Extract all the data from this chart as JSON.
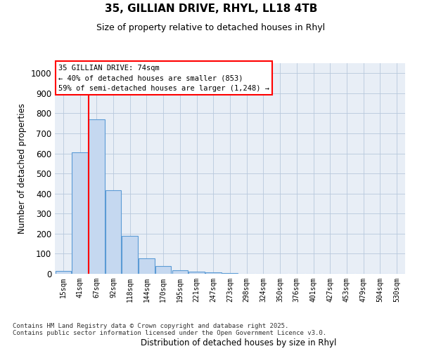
{
  "title1": "35, GILLIAN DRIVE, RHYL, LL18 4TB",
  "title2": "Size of property relative to detached houses in Rhyl",
  "xlabel": "Distribution of detached houses by size in Rhyl",
  "ylabel": "Number of detached properties",
  "bin_labels": [
    "15sqm",
    "41sqm",
    "67sqm",
    "92sqm",
    "118sqm",
    "144sqm",
    "170sqm",
    "195sqm",
    "221sqm",
    "247sqm",
    "273sqm",
    "298sqm",
    "324sqm",
    "350sqm",
    "376sqm",
    "401sqm",
    "427sqm",
    "453sqm",
    "479sqm",
    "504sqm",
    "530sqm"
  ],
  "bin_values": [
    15,
    605,
    770,
    415,
    190,
    78,
    38,
    18,
    10,
    8,
    5,
    0,
    0,
    0,
    0,
    0,
    0,
    0,
    0,
    0,
    0
  ],
  "bar_color": "#c5d8f0",
  "bar_edge_color": "#5b9bd5",
  "annotation_text": "35 GILLIAN DRIVE: 74sqm\n← 40% of detached houses are smaller (853)\n59% of semi-detached houses are larger (1,248) →",
  "annotation_box_color": "white",
  "annotation_box_edge": "red",
  "ylim": [
    0,
    1050
  ],
  "yticks": [
    0,
    100,
    200,
    300,
    400,
    500,
    600,
    700,
    800,
    900,
    1000
  ],
  "footer1": "Contains HM Land Registry data © Crown copyright and database right 2025.",
  "footer2": "Contains public sector information licensed under the Open Government Licence v3.0.",
  "bg_color": "#ffffff",
  "plot_bg_color": "#e8eef6"
}
